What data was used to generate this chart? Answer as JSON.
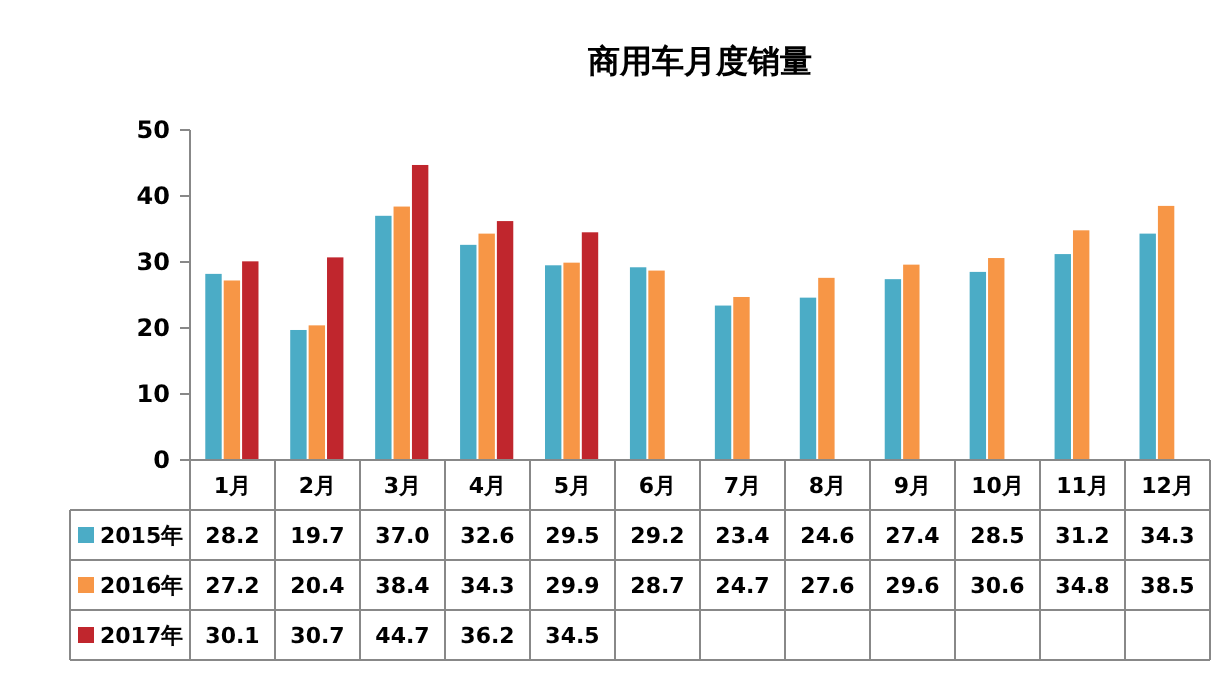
{
  "chart_data": {
    "type": "bar",
    "title": "商用车月度销量",
    "categories": [
      "1月",
      "2月",
      "3月",
      "4月",
      "5月",
      "6月",
      "7月",
      "8月",
      "9月",
      "10月",
      "11月",
      "12月"
    ],
    "series": [
      {
        "name": "2015年",
        "color": "#4bacc6",
        "values": [
          28.2,
          19.7,
          37.0,
          32.6,
          29.5,
          29.2,
          23.4,
          24.6,
          27.4,
          28.5,
          31.2,
          34.3
        ],
        "value_labels": [
          "28.2",
          "19.7",
          "37.0",
          "32.6",
          "29.5",
          "29.2",
          "23.4",
          "24.6",
          "27.4",
          "28.5",
          "31.2",
          "34.3"
        ]
      },
      {
        "name": "2016年",
        "color": "#f79646",
        "values": [
          27.2,
          20.4,
          38.4,
          34.3,
          29.9,
          28.7,
          24.7,
          27.6,
          29.6,
          30.6,
          34.8,
          38.5
        ],
        "value_labels": [
          "27.2",
          "20.4",
          "38.4",
          "34.3",
          "29.9",
          "28.7",
          "24.7",
          "27.6",
          "29.6",
          "30.6",
          "34.8",
          "38.5"
        ]
      },
      {
        "name": "2017年",
        "color": "#c0262d",
        "values": [
          30.1,
          30.7,
          44.7,
          36.2,
          34.5,
          null,
          null,
          null,
          null,
          null,
          null,
          null
        ],
        "value_labels": [
          "30.1",
          "30.7",
          "44.7",
          "36.2",
          "34.5",
          null,
          null,
          null,
          null,
          null,
          null,
          null
        ]
      }
    ],
    "ylim": [
      0,
      50
    ],
    "yticks": [
      0,
      10,
      20,
      30,
      40,
      50
    ],
    "grid": false,
    "legend": "bottom",
    "data_labels": true
  }
}
